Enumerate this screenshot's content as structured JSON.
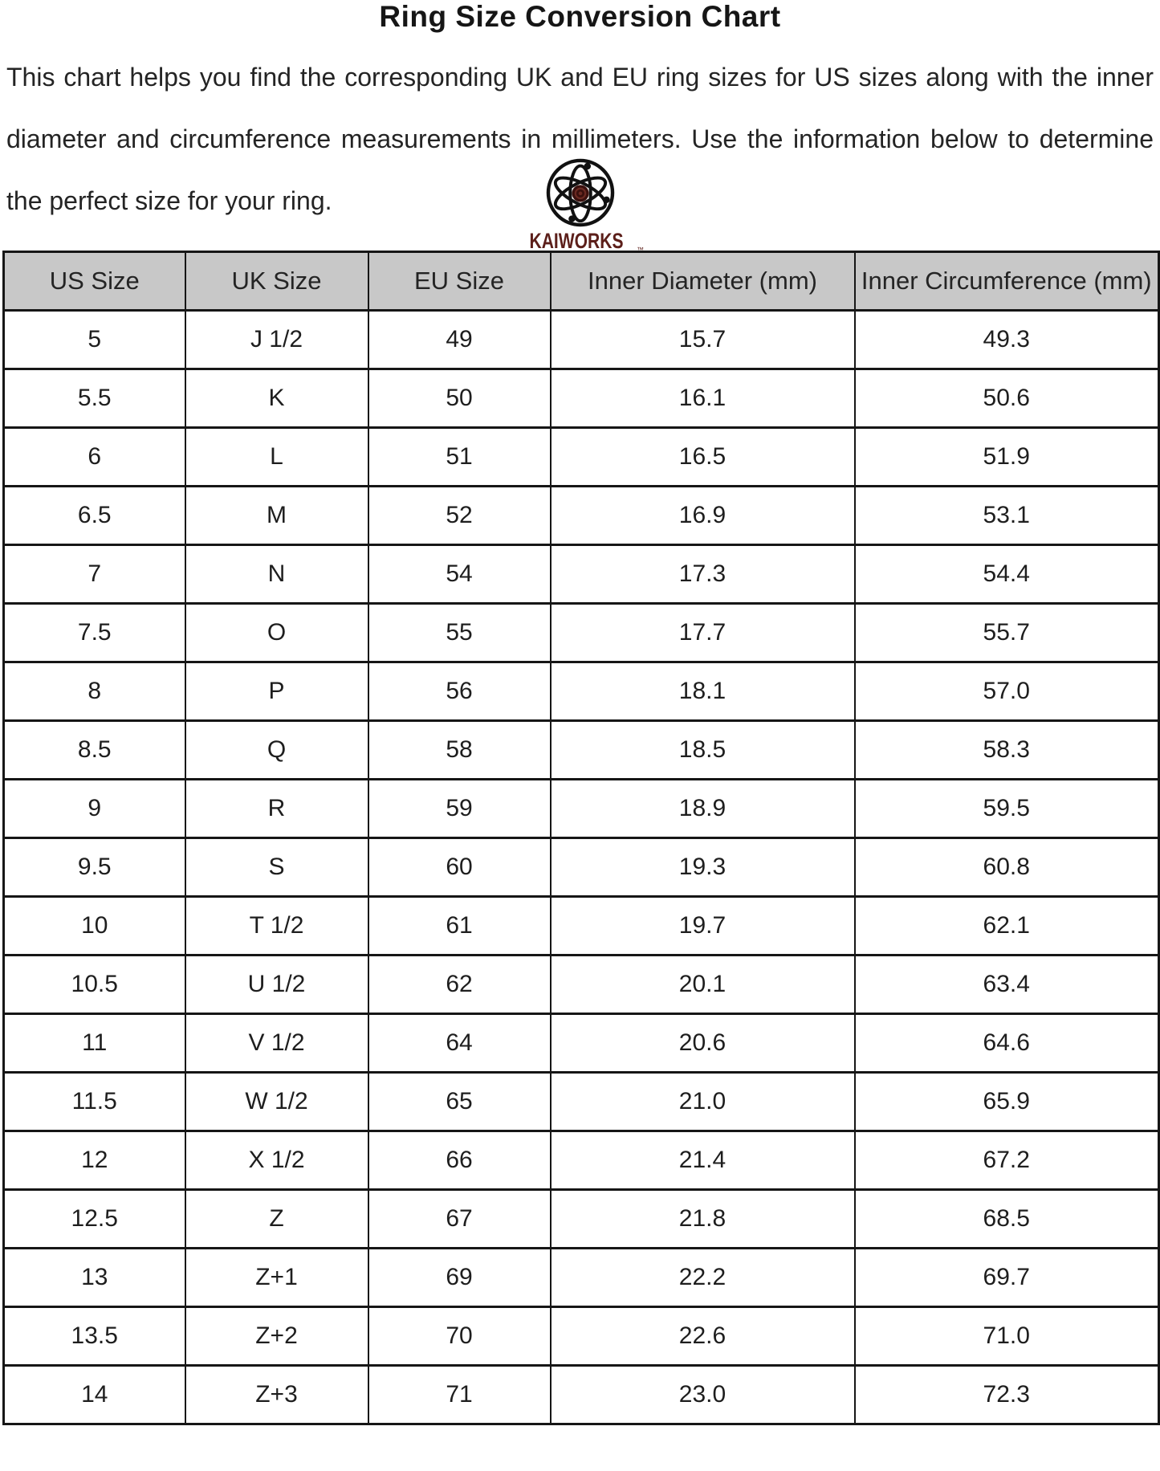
{
  "page": {
    "title": "Ring Size Conversion Chart",
    "intro_lines": [
      "This chart helps you find the corresponding UK and EU ring sizes for US sizes along with the inner",
      "diameter and circumference measurements in millimeters. Use the information below to determine",
      "the perfect size for your ring."
    ]
  },
  "logo": {
    "icon": "atom-logo-icon",
    "brand": "KAIWORKS",
    "trademark": "™"
  },
  "colors": {
    "header_bg": "#c8c8c8",
    "border": "#161616",
    "text": "#1e1e1e",
    "brand_red": "#5c1f1a"
  },
  "table": {
    "columns": [
      "US Size",
      "UK Size",
      "EU Size",
      "Inner Diameter (mm)",
      "Inner Circumference (mm)"
    ],
    "rows": [
      [
        "5",
        "J 1/2",
        "49",
        "15.7",
        "49.3"
      ],
      [
        "5.5",
        "K",
        "50",
        "16.1",
        "50.6"
      ],
      [
        "6",
        "L",
        "51",
        "16.5",
        "51.9"
      ],
      [
        "6.5",
        "M",
        "52",
        "16.9",
        "53.1"
      ],
      [
        "7",
        "N",
        "54",
        "17.3",
        "54.4"
      ],
      [
        "7.5",
        "O",
        "55",
        "17.7",
        "55.7"
      ],
      [
        "8",
        "P",
        "56",
        "18.1",
        "57.0"
      ],
      [
        "8.5",
        "Q",
        "58",
        "18.5",
        "58.3"
      ],
      [
        "9",
        "R",
        "59",
        "18.9",
        "59.5"
      ],
      [
        "9.5",
        "S",
        "60",
        "19.3",
        "60.8"
      ],
      [
        "10",
        "T 1/2",
        "61",
        "19.7",
        "62.1"
      ],
      [
        "10.5",
        "U 1/2",
        "62",
        "20.1",
        "63.4"
      ],
      [
        "11",
        "V 1/2",
        "64",
        "20.6",
        "64.6"
      ],
      [
        "11.5",
        "W 1/2",
        "65",
        "21.0",
        "65.9"
      ],
      [
        "12",
        "X 1/2",
        "66",
        "21.4",
        "67.2"
      ],
      [
        "12.5",
        "Z",
        "67",
        "21.8",
        "68.5"
      ],
      [
        "13",
        "Z+1",
        "69",
        "22.2",
        "69.7"
      ],
      [
        "13.5",
        "Z+2",
        "70",
        "22.6",
        "71.0"
      ],
      [
        "14",
        "Z+3",
        "71",
        "23.0",
        "72.3"
      ]
    ]
  }
}
